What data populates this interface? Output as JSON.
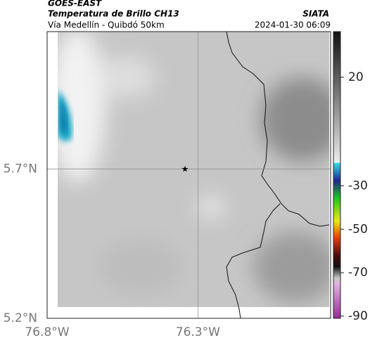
{
  "header": {
    "source": "GOES-EAST",
    "title": "Temperatura de Brillo CH13",
    "subtitle": "Vía Medellín - Quibdó 50km",
    "credit": "SIATA",
    "timestamp": "2024-01-30 06:09"
  },
  "map": {
    "xlim": [
      -76.8,
      -75.86
    ],
    "ylim": [
      5.2,
      6.16
    ],
    "xticks": [
      {
        "value": -76.8,
        "label": "76.8°W"
      },
      {
        "value": -76.3,
        "label": "76.3°W"
      }
    ],
    "yticks": [
      {
        "value": 5.2,
        "label": "5.2°N"
      },
      {
        "value": 5.7,
        "label": "5.7°N"
      }
    ]
  },
  "colorbar": {
    "clim": [
      -91,
      41
    ],
    "ticks": [
      20,
      -30,
      -50,
      -70,
      -90
    ]
  }
}
